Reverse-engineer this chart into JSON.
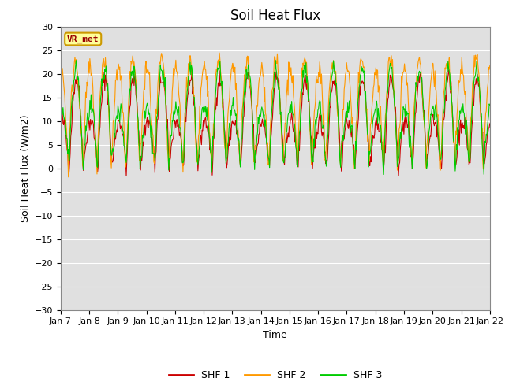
{
  "title": "Soil Heat Flux",
  "xlabel": "Time",
  "ylabel": "Soil Heat Flux (W/m2)",
  "ylim": [
    -30,
    30
  ],
  "yticks": [
    -30,
    -25,
    -20,
    -15,
    -10,
    -5,
    0,
    5,
    10,
    15,
    20,
    25,
    30
  ],
  "xtick_labels": [
    "Jan 7",
    "Jan 8",
    "Jan 9",
    "Jan 10",
    "Jan 11",
    "Jan 12",
    "Jan 13",
    "Jan 14",
    "Jan 15",
    "Jan 16",
    "Jan 17",
    "Jan 18",
    "Jan 19",
    "Jan 20",
    "Jan 21",
    "Jan 22"
  ],
  "n_days": 15,
  "points_per_day": 48,
  "bg_color": "#e0e0e0",
  "line_colors": [
    "#cc0000",
    "#ff9900",
    "#00cc00"
  ],
  "line_labels": [
    "SHF 1",
    "SHF 2",
    "SHF 3"
  ],
  "line_width": 0.8,
  "vr_met_label": "VR_met",
  "vr_met_color": "#990000",
  "vr_met_bg": "#ffff99",
  "vr_met_border": "#cc9900",
  "grid_color": "#ffffff",
  "grid_linewidth": 0.8,
  "title_fontsize": 12,
  "axis_label_fontsize": 9,
  "tick_fontsize": 8,
  "figwidth": 6.4,
  "figheight": 4.8,
  "dpi": 100
}
